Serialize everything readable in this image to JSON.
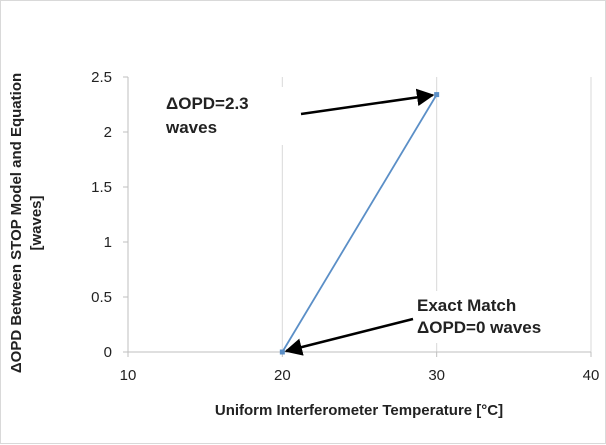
{
  "chart_data": {
    "type": "line",
    "title": "",
    "xlabel": "Uniform Interferometer Temperature [°C]",
    "ylabel_line1": "ΔOPD Between STOP Model  and Equation",
    "ylabel_line2": "[waves]",
    "xlim": [
      10,
      40
    ],
    "ylim": [
      0,
      2.5
    ],
    "xticks": [
      10,
      20,
      30,
      40
    ],
    "yticks": [
      0,
      0.5,
      1,
      1.5,
      2,
      2.5
    ],
    "grid": "vertical",
    "series": [
      {
        "x": [
          20,
          30
        ],
        "y": [
          0,
          2.34
        ],
        "color": "#5b8fc7"
      }
    ],
    "annotations": [
      {
        "lines": [
          "ΔOPD=2.3",
          "waves"
        ],
        "point": [
          30,
          2.34
        ]
      },
      {
        "lines": [
          "Exact Match",
          "ΔOPD=0  waves"
        ],
        "point": [
          20,
          0
        ]
      }
    ]
  },
  "colors": {
    "line": "#5b8fc7",
    "grid": "#d9d9d9",
    "axis": "#bfbfbf",
    "arrow": "#000000"
  }
}
